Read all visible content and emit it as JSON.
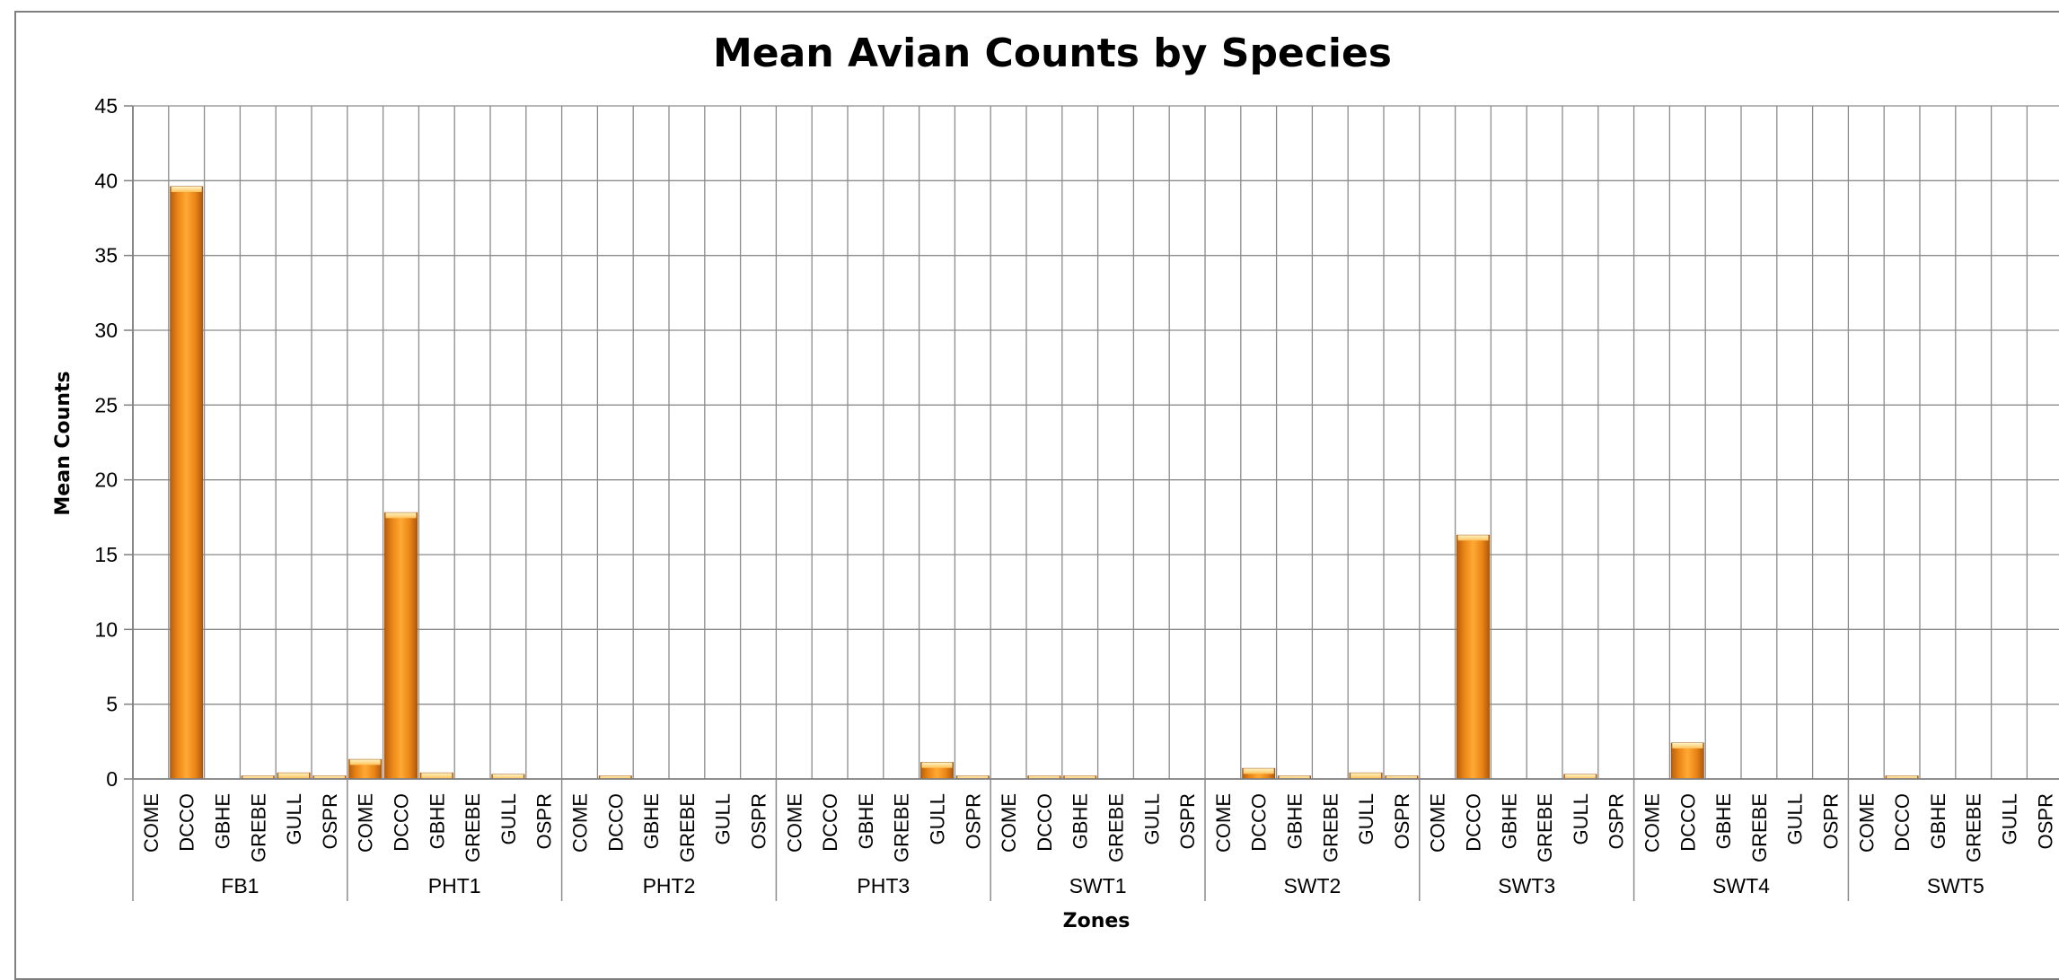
{
  "chart_data": {
    "type": "bar",
    "title": "Mean Avian Counts by Species",
    "xlabel": "Zones",
    "ylabel": "Mean Counts",
    "ylim": [
      0,
      45
    ],
    "yticks": [
      0,
      5,
      10,
      15,
      20,
      25,
      30,
      35,
      40,
      45
    ],
    "grid": true,
    "legend": "none",
    "bar_color": "#f7941d",
    "species": [
      "COME",
      "DCCO",
      "GBHE",
      "GREBE",
      "GULL",
      "OSPR"
    ],
    "groups": [
      {
        "zone": "FB1",
        "values": [
          0,
          39.6,
          0,
          0.2,
          0.4,
          0.2
        ]
      },
      {
        "zone": "PHT1",
        "values": [
          1.3,
          17.8,
          0.4,
          0,
          0.3,
          0
        ]
      },
      {
        "zone": "PHT2",
        "values": [
          0,
          0.2,
          0,
          0,
          0,
          0
        ]
      },
      {
        "zone": "PHT3",
        "values": [
          0,
          0,
          0,
          0,
          1.1,
          0.2
        ]
      },
      {
        "zone": "SWT1",
        "values": [
          0,
          0.2,
          0.2,
          0,
          0,
          0
        ]
      },
      {
        "zone": "SWT2",
        "values": [
          0,
          0.7,
          0.2,
          0,
          0.4,
          0.2
        ]
      },
      {
        "zone": "SWT3",
        "values": [
          0,
          16.3,
          0,
          0,
          0.3,
          0
        ]
      },
      {
        "zone": "SWT4",
        "values": [
          0,
          2.4,
          0,
          0,
          0,
          0
        ]
      },
      {
        "zone": "SWT5",
        "values": [
          0,
          0.2,
          0,
          0,
          0,
          0
        ]
      }
    ]
  }
}
